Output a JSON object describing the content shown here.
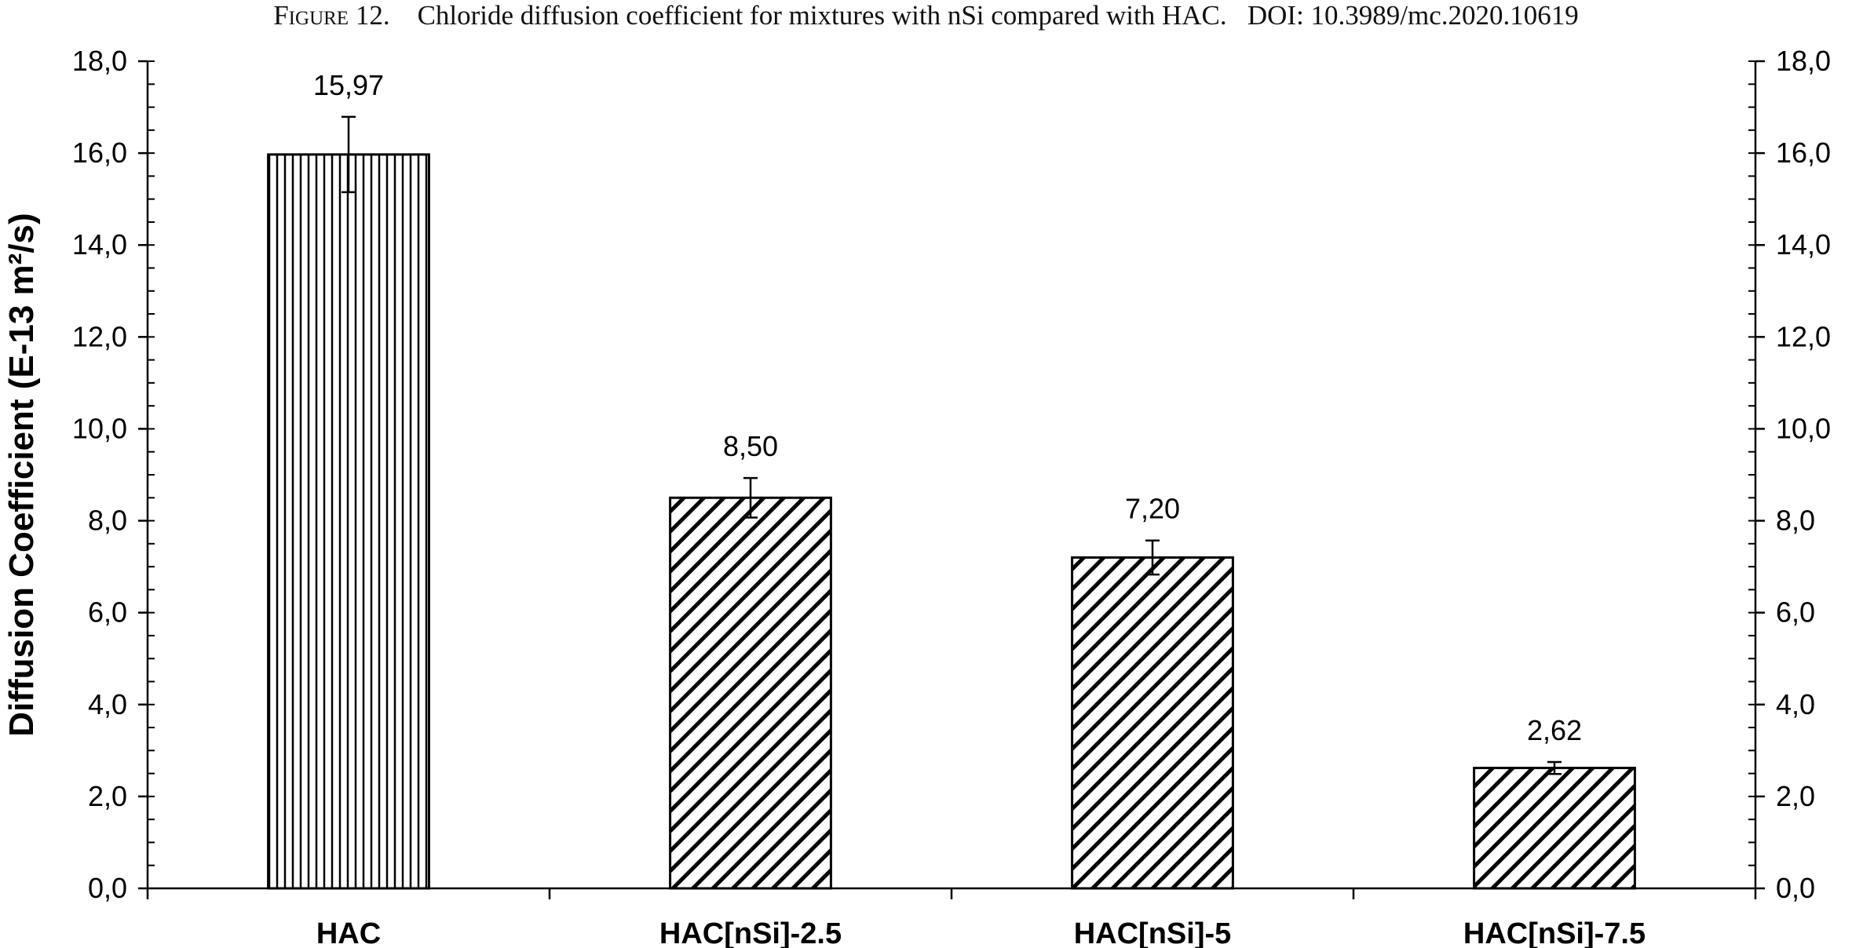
{
  "caption": {
    "figure_label": "Figure 12.",
    "text": "Chloride diffusion coefficient for mixtures with nSi compared with HAC.",
    "doi": "DOI: 10.3989/mc.2020.10619"
  },
  "chart_data": {
    "type": "bar",
    "categories": [
      "HAC",
      "HAC[nSi]-2.5",
      "HAC[nSi]-5",
      "HAC[nSi]-7.5"
    ],
    "values": [
      15.97,
      8.5,
      7.2,
      2.62
    ],
    "value_labels": [
      "15,97",
      "8,50",
      "7,20",
      "2,62"
    ],
    "error": [
      0.82,
      0.43,
      0.37,
      0.13
    ],
    "patterns": [
      "vertical",
      "diagonal",
      "diagonal",
      "diagonal"
    ],
    "ylabel": "Diffusion Coefficient (E-13 m²/s)",
    "xlabel": "",
    "ylim": [
      0,
      18
    ],
    "yticks": [
      0,
      2,
      4,
      6,
      8,
      10,
      12,
      14,
      16,
      18
    ],
    "ytick_labels": [
      "0,0",
      "2,0",
      "4,0",
      "6,0",
      "8,0",
      "10,0",
      "12,0",
      "14,0",
      "16,0",
      "18,0"
    ],
    "secondary_y_axis": true,
    "grid": false,
    "bar_color": "#000000",
    "background": "#ffffff"
  }
}
